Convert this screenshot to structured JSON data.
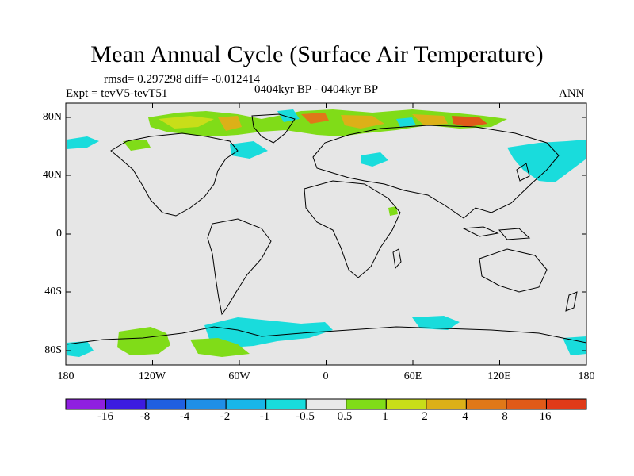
{
  "title": "Mean Annual Cycle (Surface Air Temperature)",
  "stats": "rmsd= 0.297298 diff= -0.012414",
  "experiment": "Expt = tevV5-tevT51",
  "period": "0404kyr BP - 0404kyr BP",
  "season": "ANN",
  "lat_ticks": [
    "80N",
    "40N",
    "0",
    "40S",
    "80S"
  ],
  "lon_ticks": [
    "180",
    "120W",
    "60W",
    "0",
    "60E",
    "120E",
    "180"
  ],
  "colorbar": {
    "labels": [
      "-16",
      "-8",
      "-4",
      "-2",
      "-1",
      "-0.5",
      "0.5",
      "1",
      "2",
      "4",
      "8",
      "16"
    ],
    "colors": [
      "#8f1fe0",
      "#3c1ce0",
      "#1f5fe0",
      "#1f8fe6",
      "#18b6e8",
      "#19dcdc",
      "#e8e8e8",
      "#80dc18",
      "#c8de19",
      "#dcb018",
      "#e07818",
      "#e05a18",
      "#e03a18"
    ]
  },
  "map": {
    "ocean_color": "#e6e6e6",
    "coastline_color": "#000000"
  }
}
